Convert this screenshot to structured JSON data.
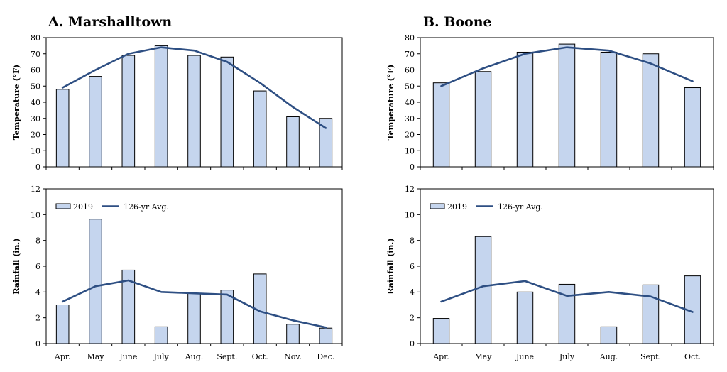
{
  "panels": {
    "a_title": "A. Marshalltown",
    "b_title": "B. Boone"
  },
  "colors": {
    "bar_fill": "#c5d5ee",
    "bar_stroke": "#000000",
    "line": "#2e4f83"
  },
  "chart_data": [
    {
      "id": "a_temp",
      "type": "bar",
      "categories": [
        "Apr.",
        "May",
        "June",
        "July",
        "Aug.",
        "Sept.",
        "Oct.",
        "Nov.",
        "Dec."
      ],
      "ylabel": "Temperature (°F)",
      "ylim": [
        0,
        80
      ],
      "yticks": [
        0,
        10,
        20,
        30,
        40,
        50,
        60,
        70,
        80
      ],
      "show_category_labels": false,
      "series": [
        {
          "kind": "bar",
          "values": [
            48,
            56,
            69,
            75,
            69,
            68,
            47,
            31,
            30
          ]
        },
        {
          "kind": "line",
          "values": [
            49,
            60,
            70,
            74,
            72,
            65,
            52,
            37,
            24
          ]
        }
      ]
    },
    {
      "id": "a_rain",
      "type": "bar",
      "categories": [
        "Apr.",
        "May",
        "June",
        "July",
        "Aug.",
        "Sept.",
        "Oct.",
        "Nov.",
        "Dec."
      ],
      "ylabel": "Rainfall (in.)",
      "ylim": [
        0,
        12
      ],
      "yticks": [
        0,
        2,
        4,
        6,
        8,
        10,
        12
      ],
      "show_category_labels": true,
      "legend": {
        "placement": "top-left",
        "bar_label": "2019",
        "line_label": "126-yr Avg."
      },
      "series": [
        {
          "kind": "bar",
          "name": "2019",
          "values": [
            3.0,
            9.65,
            5.7,
            1.3,
            3.9,
            4.15,
            5.4,
            1.5,
            1.2
          ]
        },
        {
          "kind": "line",
          "name": "126-yr Avg.",
          "values": [
            3.25,
            4.45,
            4.9,
            4.0,
            3.9,
            3.8,
            2.5,
            1.8,
            1.25
          ]
        }
      ]
    },
    {
      "id": "b_temp",
      "type": "bar",
      "categories": [
        "Apr.",
        "May",
        "June",
        "July",
        "Aug.",
        "Sept.",
        "Oct."
      ],
      "ylabel": "Temperature (°F)",
      "ylim": [
        0,
        80
      ],
      "yticks": [
        0,
        10,
        20,
        30,
        40,
        50,
        60,
        70,
        80
      ],
      "show_category_labels": false,
      "series": [
        {
          "kind": "bar",
          "values": [
            52,
            59,
            71,
            76,
            71,
            70,
            49
          ]
        },
        {
          "kind": "line",
          "values": [
            50,
            61,
            70,
            74,
            72,
            64,
            53
          ]
        }
      ]
    },
    {
      "id": "b_rain",
      "type": "bar",
      "categories": [
        "Apr.",
        "May",
        "June",
        "July",
        "Aug.",
        "Sept.",
        "Oct."
      ],
      "ylabel": "Rainfall (in.)",
      "ylim": [
        0,
        12
      ],
      "yticks": [
        0,
        2,
        4,
        6,
        8,
        10,
        12
      ],
      "show_category_labels": true,
      "legend": {
        "placement": "top-left",
        "bar_label": "2019",
        "line_label": "126-yr Avg."
      },
      "series": [
        {
          "kind": "bar",
          "name": "2019",
          "values": [
            1.95,
            8.3,
            4.0,
            4.6,
            1.3,
            4.55,
            5.25
          ]
        },
        {
          "kind": "line",
          "name": "126-yr Avg.",
          "values": [
            3.25,
            4.45,
            4.85,
            3.7,
            4.0,
            3.65,
            2.45
          ]
        }
      ]
    }
  ]
}
